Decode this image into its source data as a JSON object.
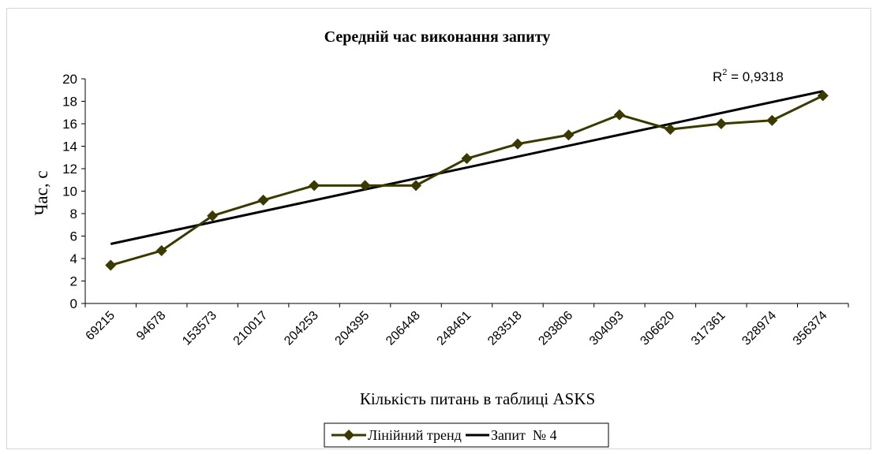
{
  "chart_data": {
    "type": "line",
    "title": "Середній час виконання запиту",
    "xlabel": "Кількість питань в таблиці ASKS",
    "ylabel": "Час, с",
    "ylim": [
      0,
      20
    ],
    "yticks": [
      0,
      2,
      4,
      6,
      8,
      10,
      12,
      14,
      16,
      18,
      20
    ],
    "grid": false,
    "categories": [
      "69215",
      "94678",
      "153573",
      "210017",
      "204253",
      "204395",
      "206448",
      "248461",
      "283518",
      "293806",
      "304093",
      "306620",
      "317361",
      "328974",
      "356374"
    ],
    "series": [
      {
        "name": "Запит №4",
        "values": [
          3.4,
          4.7,
          7.8,
          9.2,
          10.5,
          10.5,
          10.5,
          12.9,
          14.2,
          15.0,
          16.8,
          15.5,
          16.0,
          16.3,
          18.5
        ],
        "color": "#3a3a00",
        "marker": "diamond"
      }
    ],
    "trendline": {
      "name": "Лінійний тренд",
      "type": "linear",
      "start": 5.3,
      "end": 18.9,
      "color": "#000000"
    },
    "r2_label": "R",
    "r2_sup": "2",
    "r2_value": " = 0,9318",
    "legend": {
      "position": "bottom",
      "entries": [
        "Лінійний тренд",
        "Запит  № 4"
      ]
    }
  }
}
